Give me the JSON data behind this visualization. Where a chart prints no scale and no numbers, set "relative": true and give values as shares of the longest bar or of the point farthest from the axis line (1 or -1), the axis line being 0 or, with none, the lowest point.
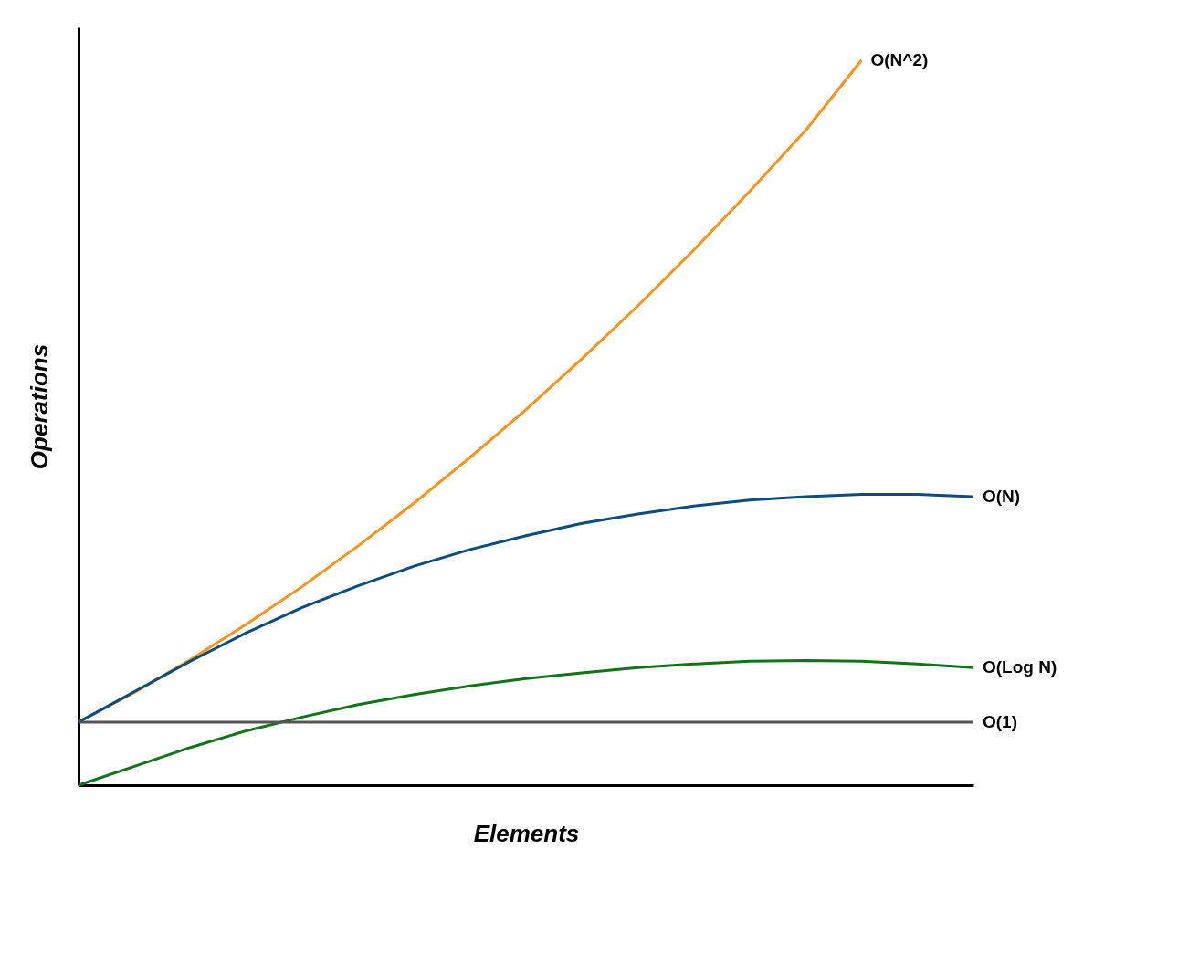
{
  "chart_data": {
    "type": "line",
    "xlabel": "Elements",
    "ylabel": "Operations",
    "relative": true,
    "legend": false,
    "grid": false,
    "tick_labels": false,
    "marker": "none",
    "line_style": "solid",
    "categories": [
      null,
      null,
      null,
      null,
      null,
      null,
      null,
      null,
      null,
      null,
      null,
      null,
      null,
      null,
      null,
      null,
      null
    ],
    "series": [
      {
        "name": "O(N^2)",
        "color": "#f7931e",
        "values": [
          0.087,
          0.128,
          0.173,
          0.222,
          0.274,
          0.33,
          0.389,
          0.452,
          0.518,
          0.588,
          0.661,
          0.738,
          0.819,
          0.903,
          1.0,
          null,
          null
        ]
      },
      {
        "name": "O(N)",
        "color": "#0d4d7a",
        "values": [
          0.087,
          0.129,
          0.171,
          0.21,
          0.245,
          0.275,
          0.302,
          0.325,
          0.344,
          0.361,
          0.374,
          0.385,
          0.393,
          0.398,
          0.401,
          0.401,
          0.398
        ]
      },
      {
        "name": "O(Log N)",
        "color": "#13731a",
        "values": [
          0,
          0.026,
          0.052,
          0.075,
          0.094,
          0.111,
          0.125,
          0.137,
          0.147,
          0.155,
          0.162,
          0.167,
          0.171,
          0.172,
          0.171,
          0.167,
          0.162
        ]
      },
      {
        "name": "O(1)",
        "color": "#555555",
        "values": [
          0.087,
          0.087,
          0.087,
          0.087,
          0.087,
          0.087,
          0.087,
          0.087,
          0.087,
          0.087,
          0.087,
          0.087,
          0.087,
          0.087,
          0.087,
          0.087,
          0.087
        ]
      }
    ]
  }
}
